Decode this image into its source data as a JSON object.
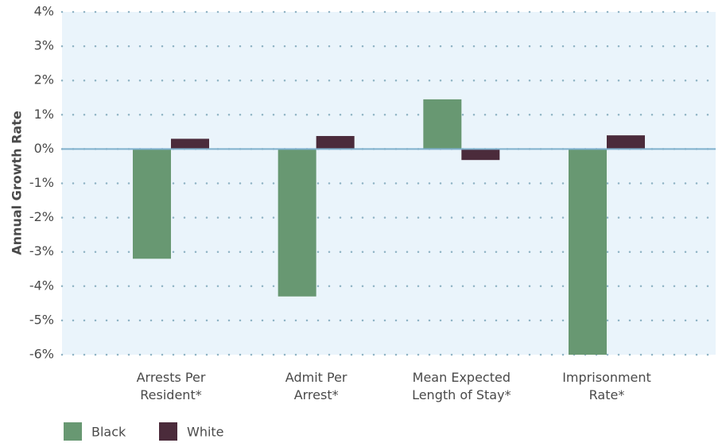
{
  "chart_data": {
    "type": "bar",
    "y_axis_label": "Annual Growth Rate",
    "categories": [
      "Arrests Per Resident*",
      "Admit Per Arrest*",
      "Mean Expected Length of Stay*",
      "Imprisonment Rate*"
    ],
    "series": [
      {
        "name": "Black",
        "color": "#689872",
        "values": [
          -3.2,
          -4.3,
          1.45,
          -6.0
        ]
      },
      {
        "name": "White",
        "color": "#4b2b3b",
        "values": [
          0.3,
          0.38,
          -0.32,
          0.4
        ]
      }
    ],
    "ylim": [
      -6,
      4
    ],
    "yticks": [
      {
        "value": -6,
        "label": "-6%"
      },
      {
        "value": -5,
        "label": "-5%"
      },
      {
        "value": -4,
        "label": "-4%"
      },
      {
        "value": -3,
        "label": "-3%"
      },
      {
        "value": -2,
        "label": "-2%"
      },
      {
        "value": -1,
        "label": "-1%"
      },
      {
        "value": 0,
        "label": "0%"
      },
      {
        "value": 1,
        "label": "1%"
      },
      {
        "value": 2,
        "label": "2%"
      },
      {
        "value": 3,
        "label": "3%"
      },
      {
        "value": 4,
        "label": "4%"
      }
    ],
    "grid": true
  }
}
